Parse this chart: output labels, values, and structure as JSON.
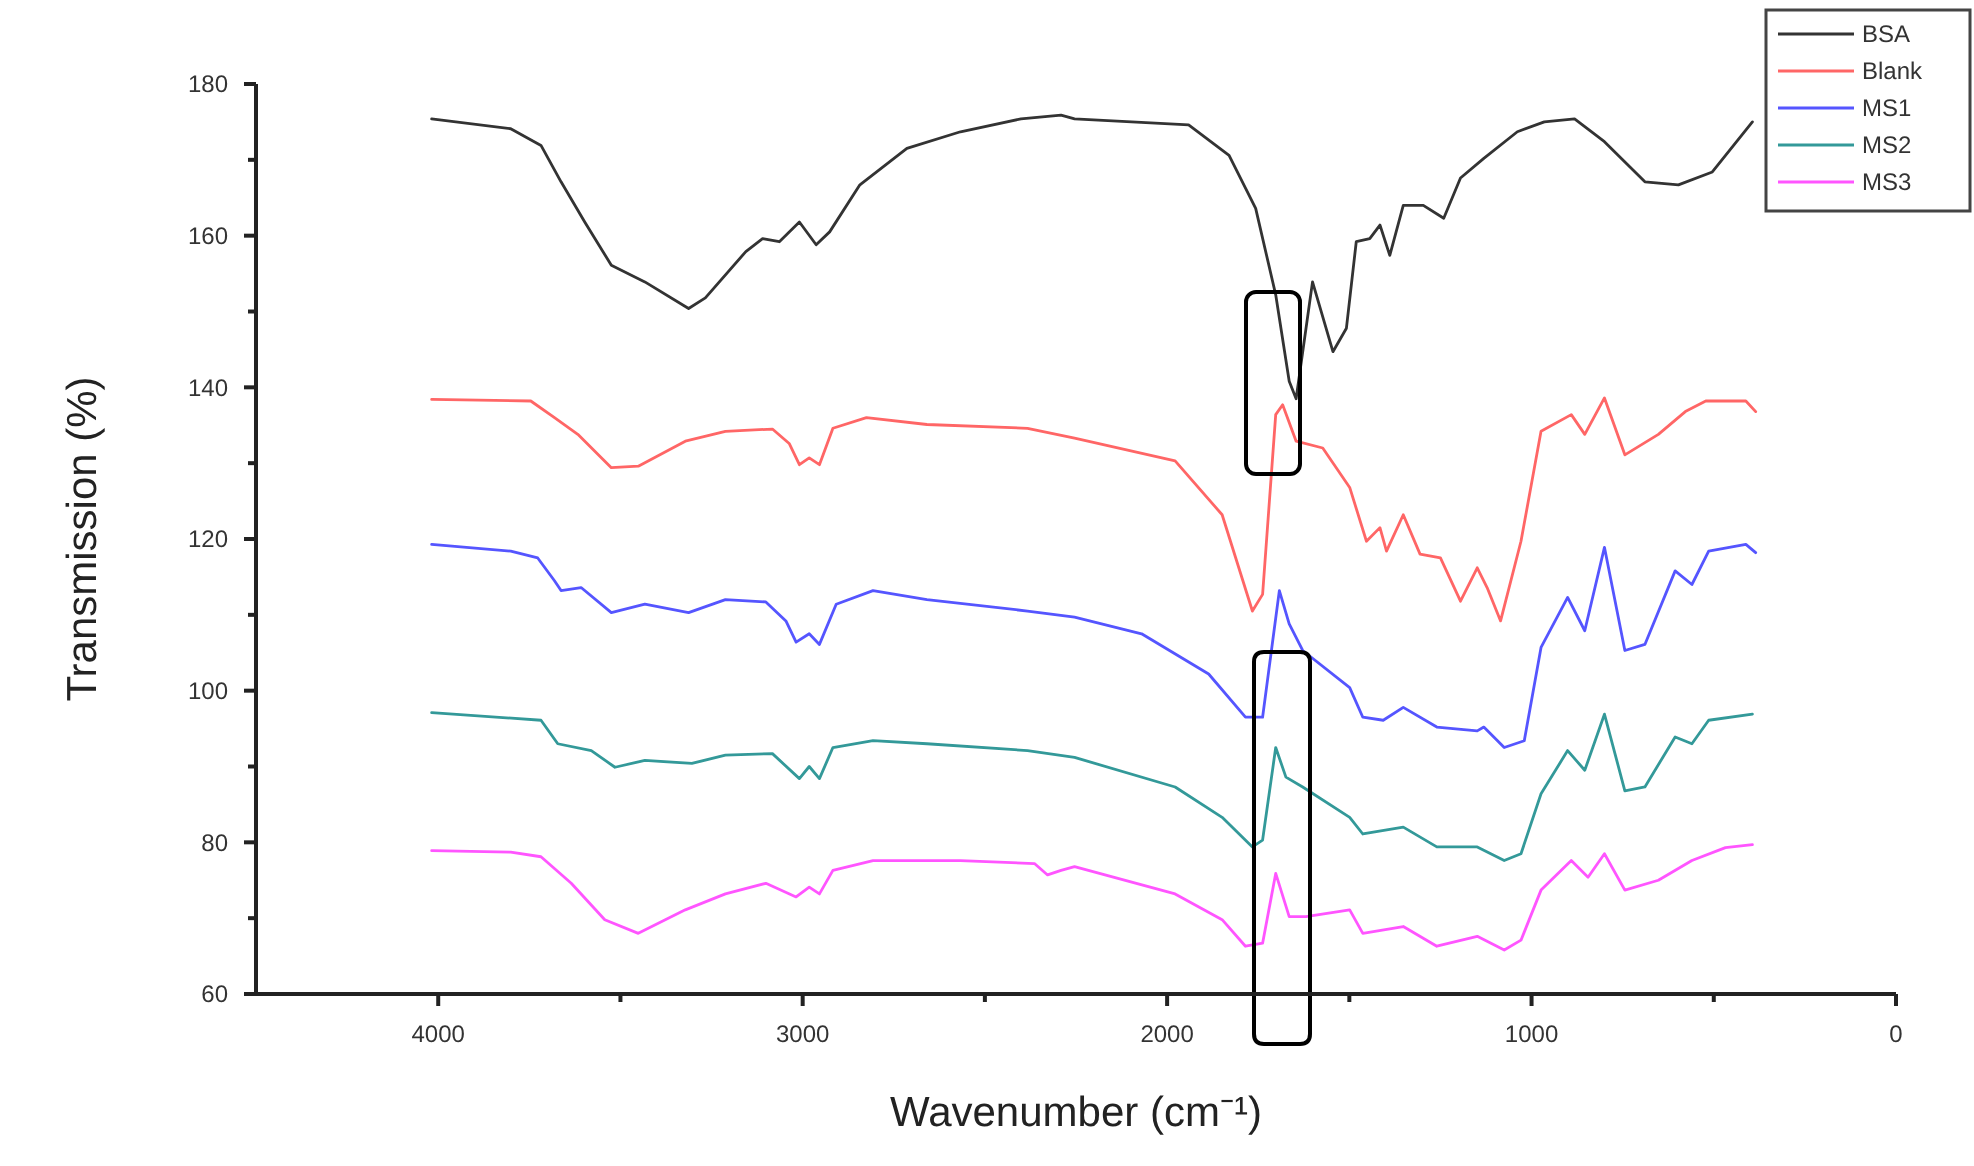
{
  "chart_data": {
    "type": "line",
    "xlabel": "Wavenumber (cm⁻¹)",
    "ylabel": "Transmission (%)",
    "xlim": [
      4500,
      0
    ],
    "xticks": [
      4000,
      {
        "value": 3500,
        "label": null
      },
      3000,
      {
        "value": 2500,
        "label": null
      },
      2000,
      {
        "value": 1500,
        "label": null
      },
      1000,
      {
        "value": 500,
        "label": null
      },
      0
    ],
    "ylim": [
      60,
      180
    ],
    "yticks": [
      60,
      {
        "value": 70,
        "label": null
      },
      80,
      {
        "value": 90,
        "label": null
      },
      100,
      {
        "value": 110,
        "label": null
      },
      120,
      {
        "value": 130,
        "label": null
      },
      140,
      {
        "value": 150,
        "label": null
      },
      160,
      {
        "value": 170,
        "label": null
      },
      180
    ],
    "grid": false,
    "legend": "top right",
    "marker": "none",
    "line_style": "solid",
    "series": [
      {
        "name": "BSA",
        "color": "#333333",
        "x": [
          4018,
          3801,
          3718,
          3663,
          3598,
          3525,
          3433,
          3313,
          3267,
          3156,
          3110,
          3064,
          3009,
          2963,
          2926,
          2843,
          2714,
          2567,
          2401,
          2291,
          2254,
          1941,
          1830,
          1757,
          1702,
          1665,
          1646,
          1601,
          1545,
          1508,
          1481,
          1444,
          1416,
          1389,
          1352,
          1297,
          1241,
          1195,
          1131,
          1039,
          965,
          882,
          800,
          689,
          597,
          504,
          394
        ],
        "values": [
          175.4,
          174.1,
          171.9,
          167.1,
          161.8,
          156.1,
          153.9,
          150.4,
          151.8,
          157.9,
          159.6,
          159.2,
          161.8,
          158.8,
          160.5,
          166.7,
          171.5,
          173.7,
          175.4,
          175.9,
          175.4,
          174.6,
          170.6,
          163.6,
          152.2,
          140.8,
          138.5,
          153.9,
          144.7,
          147.8,
          159.2,
          159.6,
          161.4,
          157.4,
          164,
          164,
          162.3,
          167.6,
          170.2,
          173.7,
          175,
          175.4,
          172.4,
          167.1,
          166.7,
          168.4,
          175
        ]
      },
      {
        "name": "Blank",
        "color": "#ff6666",
        "x": [
          4018,
          3746,
          3681,
          3617,
          3525,
          3451,
          3322,
          3212,
          3083,
          3037,
          3009,
          2982,
          2954,
          2917,
          2825,
          2659,
          2383,
          2254,
          1978,
          1849,
          1766,
          1738,
          1702,
          1683,
          1646,
          1573,
          1499,
          1453,
          1416,
          1398,
          1352,
          1306,
          1250,
          1195,
          1149,
          1122,
          1085,
          1029,
          974,
          891,
          854,
          800,
          744,
          652,
          578,
          522,
          412,
          385
        ],
        "values": [
          138.4,
          138.2,
          136,
          133.8,
          129.4,
          129.6,
          132.9,
          134.2,
          134.5,
          132.6,
          129.8,
          130.7,
          129.8,
          134.6,
          136,
          135.1,
          134.6,
          133.3,
          130.3,
          123.2,
          110.5,
          112.7,
          136.4,
          137.7,
          132.9,
          132,
          126.8,
          119.7,
          121.5,
          118.4,
          123.2,
          118,
          117.5,
          111.8,
          116.2,
          113.6,
          109.2,
          119.7,
          134.2,
          136.4,
          133.8,
          138.6,
          131.1,
          133.8,
          136.8,
          138.2,
          138.2,
          136.8
        ]
      },
      {
        "name": "MS1",
        "color": "#5555ff",
        "x": [
          4018,
          3801,
          3727,
          3681,
          3663,
          3608,
          3525,
          3433,
          3313,
          3212,
          3101,
          3046,
          3018,
          2982,
          2954,
          2908,
          2807,
          2659,
          2383,
          2254,
          2070,
          1886,
          1785,
          1738,
          1692,
          1665,
          1628,
          1499,
          1463,
          1407,
          1352,
          1260,
          1149,
          1131,
          1075,
          1020,
          974,
          901,
          854,
          800,
          744,
          689,
          606,
          560,
          514,
          412,
          385
        ],
        "values": [
          119.3,
          118.4,
          117.5,
          114.5,
          113.2,
          113.6,
          110.3,
          111.4,
          110.3,
          112,
          111.7,
          109.2,
          106.4,
          107.5,
          106.1,
          111.4,
          113.2,
          112,
          110.5,
          109.7,
          107.5,
          102.2,
          96.5,
          96.5,
          113.2,
          108.8,
          105.3,
          100.4,
          96.5,
          96.1,
          97.8,
          95.2,
          94.7,
          95.2,
          92.5,
          93.4,
          105.7,
          112.3,
          107.9,
          118.9,
          105.3,
          106.1,
          115.8,
          114,
          118.4,
          119.3,
          118.2
        ]
      },
      {
        "name": "MS2",
        "color": "#339999",
        "x": [
          4018,
          3718,
          3672,
          3580,
          3515,
          3433,
          3304,
          3212,
          3083,
          3009,
          2982,
          2954,
          2917,
          2807,
          2659,
          2383,
          2254,
          1978,
          1849,
          1766,
          1738,
          1702,
          1674,
          1628,
          1499,
          1463,
          1352,
          1260,
          1149,
          1075,
          1029,
          974,
          901,
          854,
          800,
          744,
          689,
          606,
          560,
          514,
          394
        ],
        "values": [
          97.1,
          96.1,
          93,
          92.1,
          89.9,
          90.8,
          90.4,
          91.5,
          91.7,
          88.4,
          90,
          88.4,
          92.5,
          93.4,
          93,
          92.1,
          91.2,
          87.3,
          83.3,
          79.4,
          80.3,
          92.5,
          88.6,
          87.3,
          83.3,
          81.1,
          82,
          79.4,
          79.4,
          77.6,
          78.5,
          86.4,
          92.1,
          89.5,
          96.9,
          86.8,
          87.3,
          93.9,
          93,
          96.1,
          96.9
        ]
      },
      {
        "name": "MS3",
        "color": "#ff55ff",
        "x": [
          4018,
          3801,
          3718,
          3635,
          3543,
          3451,
          3322,
          3212,
          3101,
          3018,
          2982,
          2954,
          2917,
          2807,
          2567,
          2364,
          2328,
          2291,
          2254,
          1978,
          1849,
          1785,
          1738,
          1702,
          1665,
          1619,
          1499,
          1463,
          1352,
          1260,
          1149,
          1075,
          1029,
          974,
          891,
          845,
          800,
          744,
          652,
          560,
          468,
          394
        ],
        "values": [
          78.9,
          78.7,
          78.1,
          74.6,
          69.8,
          68,
          71.1,
          73.2,
          74.6,
          72.8,
          74.1,
          73.2,
          76.3,
          77.6,
          77.6,
          77.2,
          75.7,
          76.3,
          76.8,
          73.2,
          69.8,
          66.3,
          66.7,
          75.9,
          70.2,
          70.2,
          71.1,
          68,
          68.9,
          66.3,
          67.6,
          65.8,
          67.1,
          73.7,
          77.6,
          75.4,
          78.5,
          73.7,
          75,
          77.6,
          79.3,
          79.7
        ]
      }
    ]
  }
}
